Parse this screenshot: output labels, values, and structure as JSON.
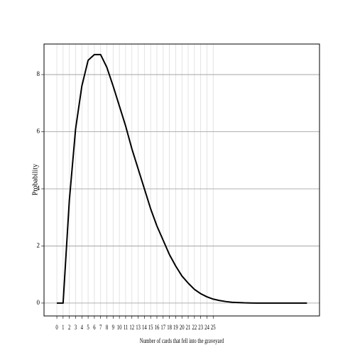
{
  "chart_data": {
    "type": "line",
    "xlabel": "Number of cards that fell into the graveyard",
    "ylabel": "Probability",
    "x": [
      0,
      1,
      2,
      3,
      4,
      5,
      6,
      7,
      8,
      9,
      10,
      11,
      12,
      13,
      14,
      15,
      16,
      17,
      18,
      19,
      20,
      21,
      22,
      23,
      24,
      25,
      26,
      27,
      28,
      29,
      30,
      31,
      32,
      33,
      34,
      35,
      36,
      37,
      38,
      39,
      40
    ],
    "series": [
      {
        "color": "#000000",
        "values": [
          0,
          0,
          3.6,
          6.1,
          7.6,
          8.5,
          8.7,
          8.7,
          8.25,
          7.6,
          6.9,
          6.2,
          5.4,
          4.7,
          4.0,
          3.3,
          2.7,
          2.2,
          1.7,
          1.3,
          0.95,
          0.7,
          0.48,
          0.33,
          0.22,
          0.14,
          0.09,
          0.055,
          0.03,
          0.02,
          0.01,
          0.005,
          0,
          0,
          0,
          0,
          0,
          0,
          0,
          0,
          0
        ]
      }
    ],
    "xlim": [
      -2.05,
      42
    ],
    "ylim": [
      -0.45,
      9.07
    ],
    "xticks": [
      0,
      1,
      2,
      3,
      4,
      5,
      6,
      7,
      8,
      9,
      10,
      11,
      12,
      13,
      14,
      15,
      16,
      17,
      18,
      19,
      20,
      21,
      22,
      23,
      24,
      25
    ],
    "yticks": [
      0,
      2,
      4,
      6,
      8
    ],
    "grid": true
  }
}
